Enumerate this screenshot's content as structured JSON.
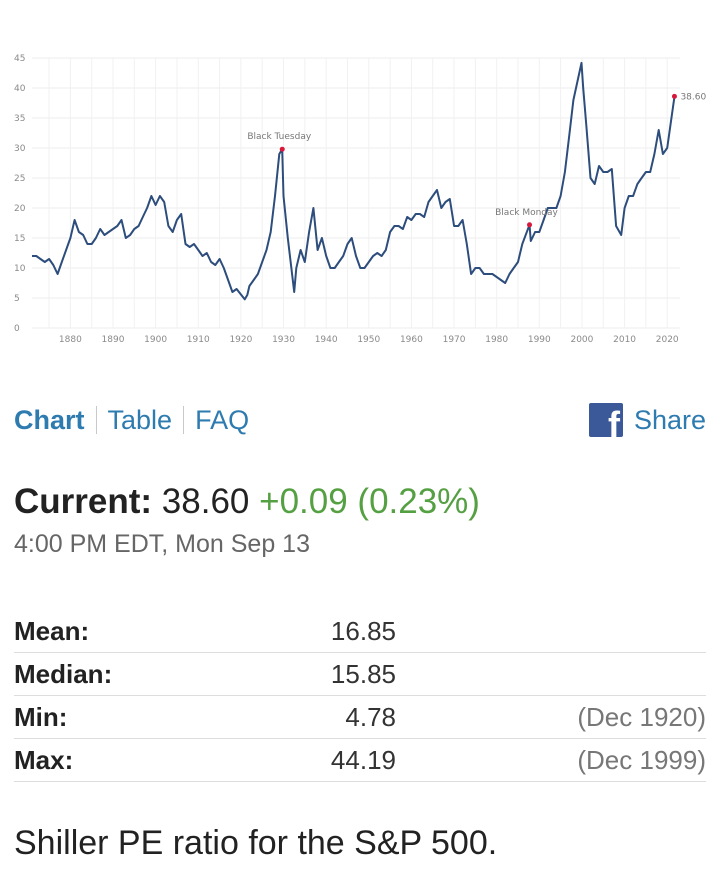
{
  "chart_data": {
    "type": "line",
    "series": [
      {
        "x": [
          1871.0,
          1872.0,
          1873.0,
          1874.0,
          1875.0,
          1876.0,
          1877.0,
          1878.0,
          1879.0,
          1880.0,
          1881.0,
          1882.0,
          1883.0,
          1884.0,
          1885.0,
          1886.0,
          1887.0,
          1888.0,
          1889.0,
          1890.0,
          1891.0,
          1892.0,
          1893.0,
          1894.0,
          1895.0,
          1896.0,
          1897.0,
          1898.0,
          1899.0,
          1900.0,
          1901.0,
          1902.0,
          1903.0,
          1904.0,
          1905.0,
          1906.0,
          1907.0,
          1908.0,
          1909.0,
          1910.0,
          1911.0,
          1912.0,
          1913.0,
          1914.0,
          1915.0,
          1916.0,
          1917.0,
          1918.0,
          1919.0,
          1920.9,
          1921.5,
          1922.0,
          1923.0,
          1924.0,
          1925.0,
          1926.0,
          1927.0,
          1928.0,
          1929.0,
          1929.7,
          1930.0,
          1931.0,
          1932.5,
          1933.0,
          1934.0,
          1935.0,
          1936.0,
          1937.0,
          1938.0,
          1939.0,
          1940.0,
          1941.0,
          1942.0,
          1943.0,
          1944.0,
          1945.0,
          1946.0,
          1947.0,
          1948.0,
          1949.0,
          1950.0,
          1951.0,
          1952.0,
          1953.0,
          1954.0,
          1955.0,
          1956.0,
          1957.0,
          1958.0,
          1959.0,
          1960.0,
          1961.0,
          1962.0,
          1963.0,
          1964.0,
          1965.0,
          1966.0,
          1967.0,
          1968.0,
          1969.0,
          1970.0,
          1971.0,
          1972.0,
          1973.0,
          1974.0,
          1975.0,
          1976.0,
          1977.0,
          1978.0,
          1979.0,
          1980.0,
          1981.0,
          1982.0,
          1983.0,
          1984.0,
          1985.0,
          1986.0,
          1987.7,
          1988.0,
          1989.0,
          1990.0,
          1991.0,
          1992.0,
          1993.0,
          1994.0,
          1995.0,
          1996.0,
          1997.0,
          1998.0,
          1999.9,
          2000.3,
          2001.0,
          2002.0,
          2003.0,
          2004.0,
          2005.0,
          2006.0,
          2007.0,
          2008.0,
          2009.2,
          2010.0,
          2011.0,
          2012.0,
          2013.0,
          2014.0,
          2015.0,
          2016.0,
          2017.0,
          2018.0,
          2019.0,
          2020.0,
          2021.7
        ],
        "y": [
          12,
          12,
          11.5,
          11,
          11.5,
          10.5,
          9,
          11,
          13,
          15,
          18,
          16,
          15.5,
          14,
          14,
          15,
          16.5,
          15.5,
          16,
          16.5,
          17,
          18,
          15,
          15.5,
          16.5,
          17,
          18.5,
          20,
          22,
          20.5,
          22,
          21,
          17,
          16,
          18,
          19,
          14,
          13.5,
          14,
          13,
          12,
          12.5,
          11,
          10.5,
          11.5,
          10,
          8,
          6,
          6.5,
          4.78,
          5.5,
          7,
          8,
          9,
          11,
          13,
          16,
          22,
          29,
          29.8,
          22,
          15,
          6,
          10,
          13,
          11,
          16,
          20,
          13,
          15,
          12,
          10,
          10,
          11,
          12,
          14,
          15,
          12,
          10,
          10,
          11,
          12,
          12.5,
          12,
          13,
          16,
          17,
          17,
          16.5,
          18.5,
          18,
          19,
          19,
          18.5,
          21,
          22,
          23,
          20,
          21,
          21.5,
          17,
          17,
          18,
          14,
          9,
          10,
          10,
          9,
          9,
          9,
          8.5,
          8,
          7.5,
          9,
          10,
          11,
          14,
          17.2,
          14.5,
          16,
          16,
          18,
          20,
          20,
          20,
          22,
          26,
          32,
          38,
          44.19,
          40,
          34,
          25,
          24,
          27,
          26,
          26,
          26.5,
          17,
          15.5,
          20,
          22,
          22,
          24,
          25,
          26,
          26,
          29,
          33,
          29,
          30,
          38.6
        ]
      }
    ],
    "ylim": [
      0,
      45
    ],
    "yticks": [
      0,
      5,
      10,
      15,
      20,
      25,
      30,
      35,
      40,
      45
    ],
    "xlim": [
      1871,
      2023
    ],
    "xticks": [
      1880,
      1890,
      1900,
      1910,
      1920,
      1930,
      1940,
      1950,
      1960,
      1970,
      1980,
      1990,
      2000,
      2010,
      2020
    ],
    "grid": true,
    "line_color": "#2d4d7c",
    "marker_color": "#d6193c",
    "annotations": [
      {
        "label": "Black Tuesday",
        "x": 1929.7,
        "y": 29.8
      },
      {
        "label": "Black Monday",
        "x": 1987.7,
        "y": 17.2
      },
      {
        "label": "38.60",
        "x": 2021.7,
        "y": 38.6
      }
    ]
  },
  "nav": {
    "chart": "Chart",
    "table": "Table",
    "faq": "FAQ",
    "share": "Share"
  },
  "current": {
    "label": "Current:",
    "value": "38.60",
    "change": "+0.09 (0.23%)",
    "timestamp": "4:00 PM EDT, Mon Sep 13"
  },
  "stats": [
    {
      "label": "Mean:",
      "value": "16.85",
      "date": ""
    },
    {
      "label": "Median:",
      "value": "15.85",
      "date": ""
    },
    {
      "label": "Min:",
      "value": "4.78",
      "date": "(Dec 1920)"
    },
    {
      "label": "Max:",
      "value": "44.19",
      "date": "(Dec 1999)"
    }
  ],
  "footer": "Shiller PE ratio for the S&P 500.",
  "colors": {
    "link": "#2e7bb0",
    "positive": "#55a042",
    "facebook": "#3b5998"
  }
}
